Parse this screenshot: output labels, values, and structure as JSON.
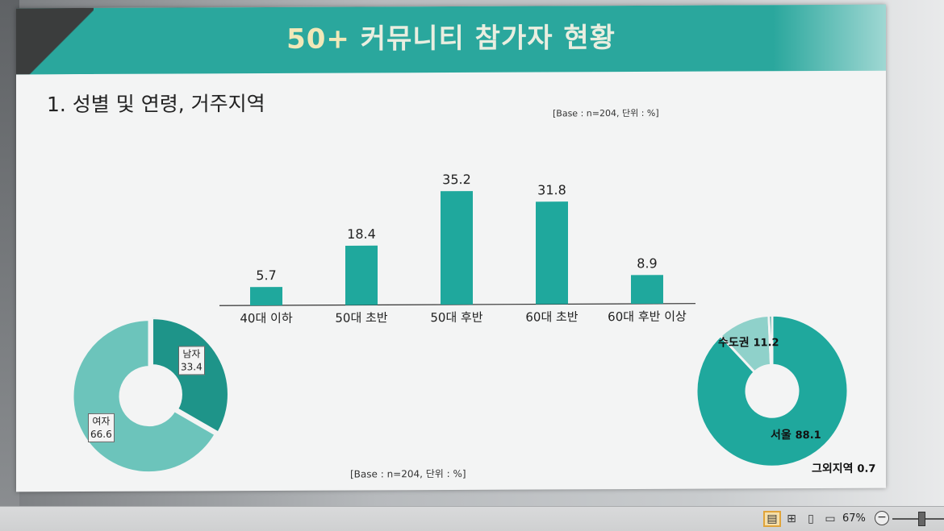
{
  "slide": {
    "title_num": "50+",
    "title_text": "커뮤니티 참가자 현황",
    "section_title": "1. 성별 및 연령, 거주지역",
    "base_note_top": "[Base : n=204, 단위 : %]",
    "base_note_bottom": "[Base : n=204, 단위 : %]"
  },
  "colors": {
    "teal": "#1fa89d",
    "teal_dark": "#1e9489",
    "teal_light": "#6cc4bb",
    "teal_pale": "#8fd1ca",
    "title_band": "#2aa79d"
  },
  "chart_data": [
    {
      "type": "bar",
      "categories": [
        "40대 이하",
        "50대 초반",
        "50대 후반",
        "60대 초반",
        "60대 후반 이상"
      ],
      "values": [
        5.7,
        18.4,
        35.2,
        31.8,
        8.9
      ],
      "ylim": [
        0,
        40
      ],
      "data_labels": [
        "5.7",
        "18.4",
        "35.2",
        "31.8",
        "8.9"
      ],
      "grid": false
    },
    {
      "type": "pie",
      "donut": true,
      "slices": [
        {
          "label": "남자",
          "value": 33.4,
          "value_text": "33.4"
        },
        {
          "label": "여자",
          "value": 66.6,
          "value_text": "66.6"
        }
      ]
    },
    {
      "type": "pie",
      "donut": true,
      "slices": [
        {
          "label": "서울",
          "value": 88.1,
          "value_text": "88.1"
        },
        {
          "label": "수도권",
          "value": 11.2,
          "value_text": "11.2"
        },
        {
          "label": "그외지역",
          "value": 0.7,
          "value_text": "0.7"
        }
      ]
    }
  ],
  "status_bar": {
    "zoom_level": "67%",
    "zoom_out_symbol": "−"
  }
}
